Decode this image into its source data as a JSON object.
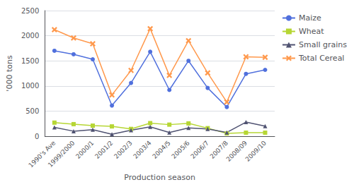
{
  "chart_data": {
    "type": "line",
    "categories": [
      "1990's Ave",
      "1999/2000",
      "2000/1",
      "2001/2",
      "2002/3",
      "2003/4",
      "2004/5",
      "2005/6",
      "2006/7",
      "2007/8",
      "2008/09",
      "2009/10"
    ],
    "series": [
      {
        "name": "Maize",
        "marker": "circle",
        "values": [
          1700,
          1630,
          1530,
          610,
          1060,
          1680,
          920,
          1500,
          960,
          580,
          1240,
          1320
        ]
      },
      {
        "name": "Wheat",
        "marker": "square",
        "values": [
          270,
          240,
          210,
          195,
          145,
          260,
          230,
          255,
          160,
          55,
          70,
          70
        ]
      },
      {
        "name": "Small grains",
        "marker": "triangle",
        "values": [
          175,
          100,
          130,
          40,
          120,
          185,
          75,
          165,
          145,
          75,
          280,
          200
        ]
      },
      {
        "name": "Total Cereal",
        "marker": "x",
        "values": [
          2120,
          1955,
          1840,
          820,
          1310,
          2140,
          1210,
          1900,
          1260,
          680,
          1580,
          1570
        ]
      }
    ],
    "xlabel": "Production season",
    "ylabel": "'000 tons",
    "ylim": [
      0,
      2500
    ],
    "yticks": [
      0,
      500,
      1000,
      1500,
      2000,
      2500
    ],
    "grid": true,
    "legend": "upper right"
  }
}
